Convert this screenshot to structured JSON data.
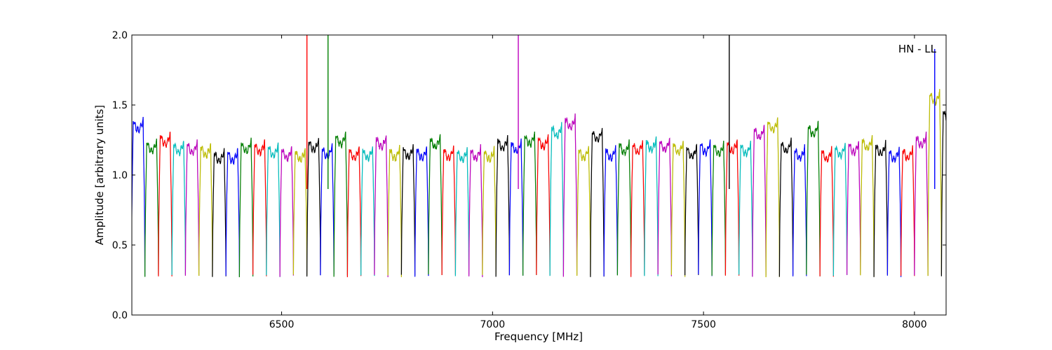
{
  "chart_data": {
    "type": "line",
    "title": "",
    "xlabel": "Frequency [MHz]",
    "ylabel": "Amplitude [arbitrary units]",
    "xlim": [
      6145,
      8075
    ],
    "ylim": [
      0.0,
      2.0
    ],
    "xticks": [
      6500,
      7000,
      7500,
      8000
    ],
    "yticks": [
      0.0,
      0.5,
      1.0,
      1.5,
      2.0
    ],
    "xtick_labels": [
      "6500",
      "7000",
      "7500",
      "8000"
    ],
    "ytick_labels": [
      "0.0",
      "0.5",
      "1.0",
      "1.5",
      "2.0"
    ],
    "annotation": "HN - LL",
    "grid": false,
    "legend": "none",
    "channel_spacing_mhz": 32,
    "color_cycle": [
      "#0000ff",
      "#008000",
      "#ff0000",
      "#00bfbf",
      "#bf00bf",
      "#bfbf00",
      "#000000"
    ],
    "background_trace_color": "#bfbfbf",
    "channels": [
      {
        "center": 6160,
        "color": "#0000ff",
        "level": 1.4,
        "shape": "rise"
      },
      {
        "center": 6192,
        "color": "#008000",
        "level": 1.25
      },
      {
        "center": 6224,
        "color": "#ff0000",
        "level": 1.3
      },
      {
        "center": 6256,
        "color": "#00bfbf",
        "level": 1.24
      },
      {
        "center": 6288,
        "color": "#bf00bf",
        "level": 1.24
      },
      {
        "center": 6320,
        "color": "#bfbf00",
        "level": 1.22
      },
      {
        "center": 6352,
        "color": "#000000",
        "level": 1.18
      },
      {
        "center": 6384,
        "color": "#0000ff",
        "level": 1.18
      },
      {
        "center": 6416,
        "color": "#008000",
        "level": 1.25
      },
      {
        "center": 6448,
        "color": "#ff0000",
        "level": 1.24
      },
      {
        "center": 6480,
        "color": "#00bfbf",
        "level": 1.22
      },
      {
        "center": 6512,
        "color": "#bf00bf",
        "level": 1.2
      },
      {
        "center": 6544,
        "color": "#bfbf00",
        "level": 1.19
      },
      {
        "center": 6576,
        "color": "#000000",
        "level": 1.26
      },
      {
        "center": 6608,
        "color": "#0000ff",
        "level": 1.21
      },
      {
        "center": 6640,
        "color": "#008000",
        "level": 1.3
      },
      {
        "center": 6672,
        "color": "#ff0000",
        "level": 1.2
      },
      {
        "center": 6704,
        "color": "#00bfbf",
        "level": 1.2
      },
      {
        "center": 6736,
        "color": "#bf00bf",
        "level": 1.28
      },
      {
        "center": 6768,
        "color": "#bfbf00",
        "level": 1.2
      },
      {
        "center": 6800,
        "color": "#000000",
        "level": 1.21
      },
      {
        "center": 6832,
        "color": "#0000ff",
        "level": 1.2
      },
      {
        "center": 6864,
        "color": "#008000",
        "level": 1.28
      },
      {
        "center": 6896,
        "color": "#ff0000",
        "level": 1.2
      },
      {
        "center": 6928,
        "color": "#00bfbf",
        "level": 1.19
      },
      {
        "center": 6960,
        "color": "#bf00bf",
        "level": 1.2
      },
      {
        "center": 6992,
        "color": "#bfbf00",
        "level": 1.19
      },
      {
        "center": 7024,
        "color": "#000000",
        "level": 1.27
      },
      {
        "center": 7056,
        "color": "#0000ff",
        "level": 1.25
      },
      {
        "center": 7088,
        "color": "#008000",
        "level": 1.3
      },
      {
        "center": 7120,
        "color": "#ff0000",
        "level": 1.28
      },
      {
        "center": 7152,
        "color": "#00bfbf",
        "level": 1.36
      },
      {
        "center": 7184,
        "color": "#bf00bf",
        "level": 1.42
      },
      {
        "center": 7216,
        "color": "#bfbf00",
        "level": 1.2
      },
      {
        "center": 7248,
        "color": "#000000",
        "level": 1.33
      },
      {
        "center": 7280,
        "color": "#0000ff",
        "level": 1.2
      },
      {
        "center": 7312,
        "color": "#008000",
        "level": 1.24
      },
      {
        "center": 7344,
        "color": "#ff0000",
        "level": 1.24
      },
      {
        "center": 7376,
        "color": "#00bfbf",
        "level": 1.26
      },
      {
        "center": 7408,
        "color": "#bf00bf",
        "level": 1.26
      },
      {
        "center": 7440,
        "color": "#bfbf00",
        "level": 1.24
      },
      {
        "center": 7472,
        "color": "#000000",
        "level": 1.21
      },
      {
        "center": 7504,
        "color": "#0000ff",
        "level": 1.24
      },
      {
        "center": 7536,
        "color": "#008000",
        "level": 1.23
      },
      {
        "center": 7568,
        "color": "#ff0000",
        "level": 1.25
      },
      {
        "center": 7600,
        "color": "#00bfbf",
        "level": 1.23
      },
      {
        "center": 7632,
        "color": "#bf00bf",
        "level": 1.35
      },
      {
        "center": 7664,
        "color": "#bfbf00",
        "level": 1.4
      },
      {
        "center": 7696,
        "color": "#000000",
        "level": 1.25
      },
      {
        "center": 7728,
        "color": "#0000ff",
        "level": 1.2
      },
      {
        "center": 7760,
        "color": "#008000",
        "level": 1.37
      },
      {
        "center": 7792,
        "color": "#ff0000",
        "level": 1.19
      },
      {
        "center": 7824,
        "color": "#00bfbf",
        "level": 1.22
      },
      {
        "center": 7856,
        "color": "#bf00bf",
        "level": 1.24
      },
      {
        "center": 7888,
        "color": "#bfbf00",
        "level": 1.27
      },
      {
        "center": 7920,
        "color": "#000000",
        "level": 1.23
      },
      {
        "center": 7952,
        "color": "#0000ff",
        "level": 1.19
      },
      {
        "center": 7984,
        "color": "#ff0000",
        "level": 1.2
      },
      {
        "center": 8016,
        "color": "#bf00bf",
        "level": 1.29
      },
      {
        "center": 8048,
        "color": "#bfbf00",
        "level": 1.6
      },
      {
        "center": 8080,
        "color": "#000000",
        "level": 1.47
      }
    ],
    "spikes": [
      {
        "x": 6560,
        "color": "#ff0000",
        "y_top": 2.0
      },
      {
        "x": 6610,
        "color": "#008000",
        "y_top": 2.0
      },
      {
        "x": 7061,
        "color": "#bf00bf",
        "y_top": 2.0
      },
      {
        "x": 7561,
        "color": "#000000",
        "y_top": 2.0
      },
      {
        "x": 8048,
        "color": "#0000ff",
        "y_top": 1.9
      }
    ]
  }
}
